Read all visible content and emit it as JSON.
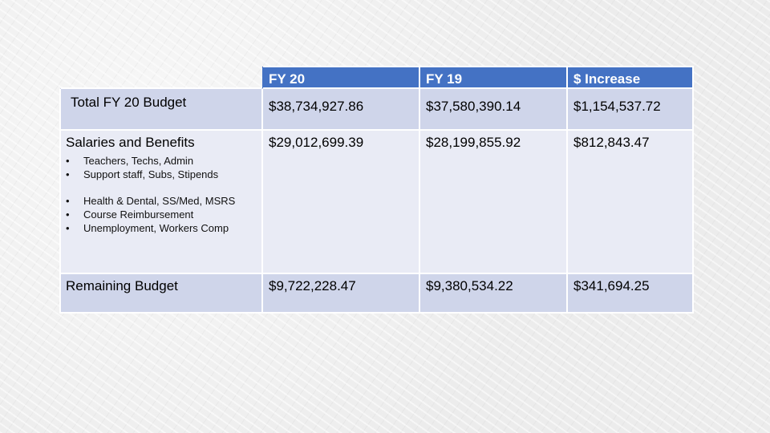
{
  "table": {
    "headers": [
      "",
      "FY 20",
      "FY 19",
      "$ Increase"
    ],
    "rows": [
      {
        "label": "Total FY 20 Budget",
        "fy20": "$38,734,927.86",
        "fy19": "$37,580,390.14",
        "increase": "$1,154,537.72"
      },
      {
        "label": "Salaries and Benefits",
        "fy20": "$29,012,699.39",
        "fy19": "$28,199,855.92",
        "increase": "$812,843.47",
        "bullets_group1": [
          "Teachers, Techs, Admin",
          "Support staff, Subs, Stipends"
        ],
        "bullets_group2": [
          "Health & Dental, SS/Med, MSRS",
          "Course Reimbursement",
          "Unemployment, Workers Comp"
        ]
      },
      {
        "label": "Remaining Budget",
        "fy20": "$9,722,228.47",
        "fy19": "$9,380,534.22",
        "increase": "$341,694.25"
      }
    ],
    "bullet_glyph": "•"
  }
}
